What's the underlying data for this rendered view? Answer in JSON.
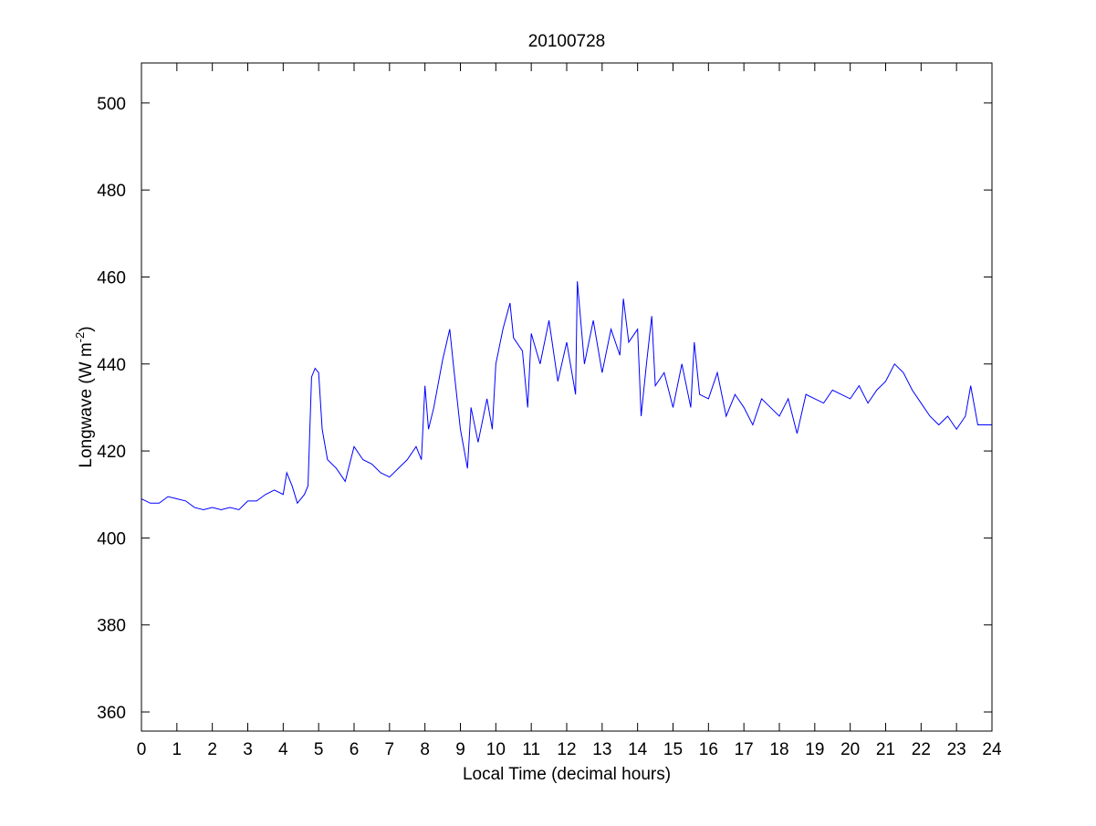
{
  "chart_data": {
    "type": "line",
    "title": "20100728",
    "xlabel": "Local Time (decimal hours)",
    "ylabel": [
      "Longwave (W m",
      "-2",
      ")"
    ],
    "x": [
      0,
      0.25,
      0.5,
      0.75,
      1,
      1.25,
      1.5,
      1.75,
      2,
      2.25,
      2.5,
      2.75,
      3,
      3.25,
      3.5,
      3.75,
      4,
      4.1,
      4.25,
      4.4,
      4.6,
      4.7,
      4.8,
      4.9,
      5,
      5.1,
      5.25,
      5.5,
      5.75,
      6,
      6.25,
      6.5,
      6.75,
      7,
      7.25,
      7.5,
      7.75,
      7.9,
      8,
      8.1,
      8.25,
      8.5,
      8.7,
      8.8,
      9,
      9.2,
      9.3,
      9.5,
      9.75,
      9.9,
      10,
      10.2,
      10.4,
      10.5,
      10.75,
      10.9,
      11,
      11.25,
      11.5,
      11.75,
      12,
      12.25,
      12.3,
      12.5,
      12.75,
      13,
      13.25,
      13.5,
      13.6,
      13.75,
      14,
      14.1,
      14.25,
      14.4,
      14.5,
      14.75,
      15,
      15.25,
      15.5,
      15.6,
      15.75,
      16,
      16.25,
      16.5,
      16.75,
      17,
      17.25,
      17.5,
      17.75,
      18,
      18.25,
      18.5,
      18.75,
      19,
      19.25,
      19.5,
      19.75,
      20,
      20.25,
      20.5,
      20.75,
      21,
      21.25,
      21.5,
      21.75,
      22,
      22.25,
      22.5,
      22.75,
      23,
      23.25,
      23.4,
      23.6,
      23.75,
      24
    ],
    "series": [
      {
        "name": "Longwave",
        "color": "#0000ff",
        "values": [
          409,
          408,
          408,
          409.5,
          409,
          408.5,
          407,
          406.5,
          407,
          406.5,
          407,
          406.5,
          408.5,
          408.5,
          410,
          411,
          410,
          415,
          412,
          408,
          410,
          412,
          437,
          439,
          438,
          425,
          418,
          416,
          413,
          421,
          418,
          417,
          415,
          414,
          416,
          418,
          421,
          418,
          435,
          425,
          430,
          441,
          448,
          440,
          425,
          416,
          430,
          422,
          432,
          425,
          440,
          448,
          454,
          446,
          443,
          430,
          447,
          440,
          450,
          436,
          445,
          433,
          459,
          440,
          450,
          438,
          448,
          442,
          455,
          445,
          448,
          428,
          440,
          451,
          435,
          438,
          430,
          440,
          430,
          445,
          433,
          432,
          438,
          428,
          433,
          430,
          426,
          432,
          430,
          428,
          432,
          424,
          433,
          432,
          431,
          434,
          433,
          432,
          435,
          431,
          434,
          436,
          440,
          438,
          434,
          431,
          428,
          426,
          428,
          425,
          428,
          435,
          426,
          426,
          426
        ]
      }
    ],
    "xlim": [
      0,
      24
    ],
    "xticks": [
      0,
      1,
      2,
      3,
      4,
      5,
      6,
      7,
      8,
      9,
      10,
      11,
      12,
      13,
      14,
      15,
      16,
      17,
      18,
      19,
      20,
      21,
      22,
      23,
      24
    ],
    "ylim": [
      355.6,
      509.2
    ],
    "yticks": [
      360,
      380,
      400,
      420,
      440,
      460,
      480,
      500
    ],
    "grid": false
  }
}
